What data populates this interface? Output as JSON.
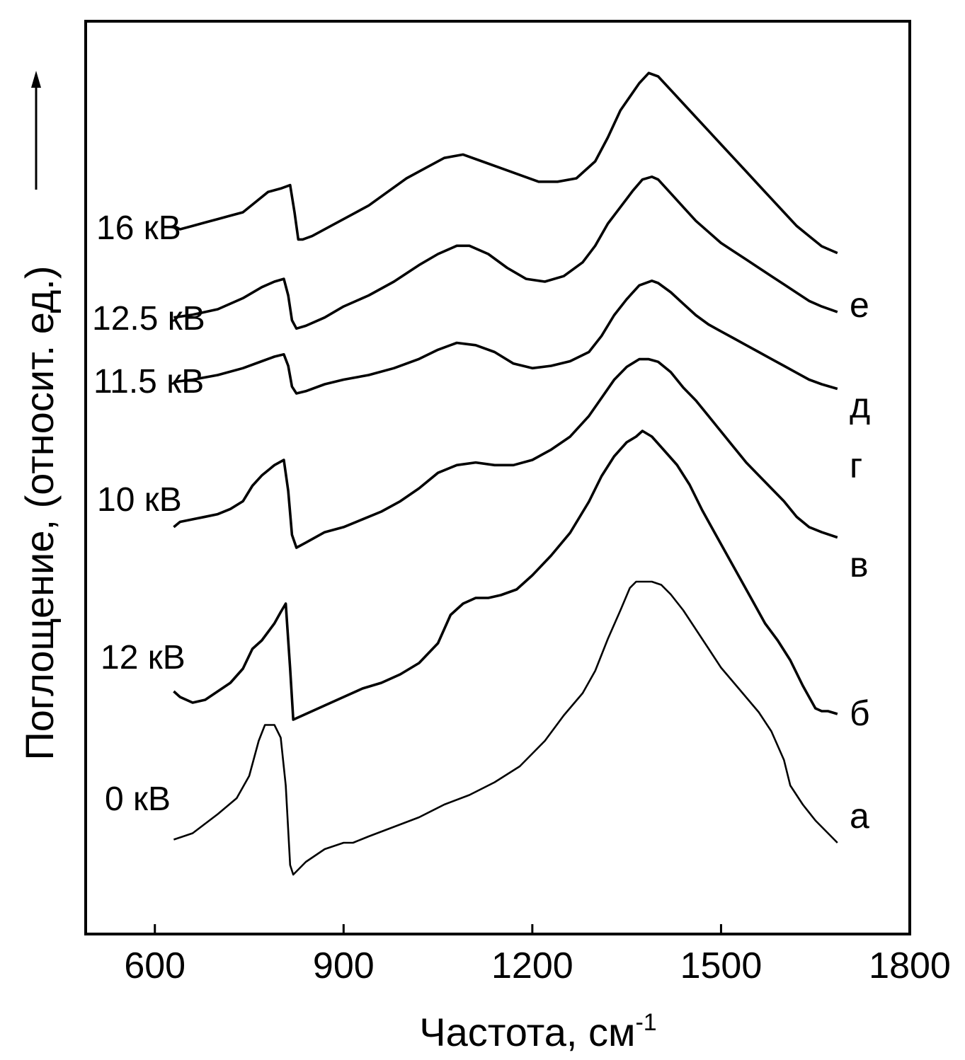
{
  "chart_data": {
    "type": "line",
    "xlabel": "Частота, см",
    "xlabel_superscript": "-1",
    "ylabel": "Поглощение, (относит. ед.)",
    "xlim": [
      490,
      1800
    ],
    "xticks": [
      600,
      900,
      1200,
      1500,
      1800
    ],
    "yticks": [],
    "grid": false,
    "ylabel_arrow": true,
    "series": [
      {
        "voltage_label": "0 кВ",
        "letter": "а",
        "x": [
          630,
          660,
          700,
          730,
          750,
          765,
          775,
          790,
          800,
          808,
          815,
          820,
          825,
          840,
          870,
          900,
          915,
          940,
          980,
          1020,
          1060,
          1100,
          1140,
          1180,
          1220,
          1250,
          1280,
          1300,
          1320,
          1340,
          1355,
          1365,
          1375,
          1390,
          1405,
          1420,
          1440,
          1460,
          1480,
          1500,
          1530,
          1560,
          1580,
          1600,
          1610,
          1630,
          1650,
          1670,
          1685
        ],
        "y": [
          0.13,
          0.15,
          0.21,
          0.26,
          0.33,
          0.44,
          0.49,
          0.49,
          0.45,
          0.3,
          0.05,
          0.02,
          0.03,
          0.06,
          0.1,
          0.12,
          0.12,
          0.14,
          0.17,
          0.2,
          0.24,
          0.27,
          0.31,
          0.36,
          0.44,
          0.52,
          0.59,
          0.66,
          0.76,
          0.85,
          0.92,
          0.94,
          0.94,
          0.94,
          0.93,
          0.9,
          0.85,
          0.79,
          0.73,
          0.67,
          0.6,
          0.53,
          0.47,
          0.38,
          0.3,
          0.24,
          0.19,
          0.15,
          0.12
        ]
      },
      {
        "voltage_label": "12 кВ",
        "letter": "б",
        "x": [
          630,
          640,
          660,
          680,
          700,
          720,
          740,
          755,
          770,
          790,
          800,
          808,
          815,
          820,
          840,
          870,
          900,
          930,
          960,
          990,
          1020,
          1050,
          1070,
          1090,
          1110,
          1130,
          1150,
          1175,
          1200,
          1230,
          1260,
          1290,
          1310,
          1330,
          1350,
          1365,
          1375,
          1390,
          1410,
          1430,
          1450,
          1470,
          1490,
          1510,
          1530,
          1550,
          1570,
          1590,
          1610,
          1630,
          1640,
          1650,
          1660,
          1670,
          1685
        ],
        "y": [
          0.12,
          0.1,
          0.08,
          0.09,
          0.12,
          0.15,
          0.2,
          0.27,
          0.3,
          0.36,
          0.4,
          0.43,
          0.2,
          0.02,
          0.04,
          0.07,
          0.1,
          0.13,
          0.15,
          0.18,
          0.22,
          0.29,
          0.39,
          0.43,
          0.45,
          0.45,
          0.46,
          0.48,
          0.53,
          0.6,
          0.68,
          0.79,
          0.88,
          0.95,
          1.0,
          1.02,
          1.04,
          1.02,
          0.97,
          0.92,
          0.85,
          0.76,
          0.68,
          0.6,
          0.52,
          0.44,
          0.36,
          0.3,
          0.23,
          0.14,
          0.1,
          0.06,
          0.05,
          0.05,
          0.04
        ]
      },
      {
        "voltage_label": "10 кВ",
        "letter": "в",
        "x": [
          630,
          640,
          660,
          680,
          700,
          720,
          740,
          755,
          770,
          790,
          805,
          812,
          818,
          825,
          840,
          870,
          900,
          930,
          960,
          990,
          1020,
          1050,
          1080,
          1110,
          1140,
          1170,
          1200,
          1230,
          1260,
          1290,
          1310,
          1330,
          1350,
          1370,
          1385,
          1400,
          1420,
          1440,
          1460,
          1480,
          1500,
          1520,
          1540,
          1560,
          1580,
          1600,
          1620,
          1640,
          1660,
          1685
        ],
        "y": [
          0.11,
          0.13,
          0.14,
          0.15,
          0.16,
          0.18,
          0.21,
          0.27,
          0.31,
          0.35,
          0.37,
          0.25,
          0.08,
          0.03,
          0.05,
          0.09,
          0.11,
          0.14,
          0.17,
          0.21,
          0.26,
          0.32,
          0.35,
          0.36,
          0.35,
          0.35,
          0.37,
          0.41,
          0.46,
          0.54,
          0.61,
          0.68,
          0.73,
          0.76,
          0.76,
          0.75,
          0.71,
          0.65,
          0.6,
          0.54,
          0.48,
          0.42,
          0.36,
          0.31,
          0.26,
          0.21,
          0.15,
          0.11,
          0.09,
          0.07
        ]
      },
      {
        "voltage_label": "11.5 кВ",
        "letter": "г",
        "x": [
          630,
          660,
          700,
          740,
          770,
          790,
          805,
          812,
          818,
          825,
          840,
          870,
          900,
          940,
          980,
          1020,
          1050,
          1080,
          1110,
          1140,
          1170,
          1200,
          1230,
          1260,
          1290,
          1310,
          1330,
          1350,
          1370,
          1390,
          1400,
          1420,
          1440,
          1460,
          1480,
          1500,
          1520,
          1540,
          1560,
          1580,
          1600,
          1620,
          1640,
          1660,
          1685
        ],
        "y": [
          0.17,
          0.18,
          0.2,
          0.23,
          0.26,
          0.28,
          0.29,
          0.24,
          0.15,
          0.12,
          0.13,
          0.16,
          0.18,
          0.2,
          0.23,
          0.27,
          0.31,
          0.34,
          0.33,
          0.3,
          0.25,
          0.23,
          0.24,
          0.26,
          0.3,
          0.37,
          0.46,
          0.53,
          0.59,
          0.61,
          0.6,
          0.56,
          0.51,
          0.46,
          0.42,
          0.39,
          0.36,
          0.33,
          0.3,
          0.27,
          0.24,
          0.21,
          0.18,
          0.16,
          0.14
        ]
      },
      {
        "voltage_label": "12.5 кВ",
        "letter": "д",
        "x": [
          630,
          660,
          700,
          740,
          770,
          790,
          805,
          812,
          818,
          825,
          840,
          870,
          900,
          940,
          980,
          1020,
          1050,
          1080,
          1100,
          1130,
          1160,
          1190,
          1220,
          1250,
          1280,
          1300,
          1320,
          1340,
          1360,
          1375,
          1390,
          1400,
          1420,
          1440,
          1460,
          1480,
          1500,
          1520,
          1540,
          1560,
          1580,
          1600,
          1620,
          1640,
          1660,
          1685
        ],
        "y": [
          0.17,
          0.18,
          0.2,
          0.24,
          0.28,
          0.3,
          0.31,
          0.25,
          0.16,
          0.13,
          0.14,
          0.17,
          0.21,
          0.25,
          0.3,
          0.36,
          0.4,
          0.43,
          0.43,
          0.4,
          0.35,
          0.31,
          0.3,
          0.32,
          0.37,
          0.43,
          0.51,
          0.57,
          0.63,
          0.67,
          0.68,
          0.67,
          0.62,
          0.57,
          0.52,
          0.48,
          0.44,
          0.41,
          0.38,
          0.35,
          0.32,
          0.29,
          0.26,
          0.23,
          0.21,
          0.19
        ]
      },
      {
        "voltage_label": "16 кВ",
        "letter": "е",
        "x": [
          630,
          640,
          660,
          680,
          700,
          720,
          740,
          760,
          780,
          800,
          815,
          822,
          828,
          835,
          850,
          880,
          910,
          940,
          970,
          1000,
          1030,
          1060,
          1090,
          1120,
          1150,
          1180,
          1210,
          1240,
          1270,
          1300,
          1320,
          1340,
          1355,
          1370,
          1385,
          1400,
          1420,
          1440,
          1460,
          1480,
          1500,
          1520,
          1540,
          1560,
          1580,
          1600,
          1620,
          1640,
          1660,
          1685
        ],
        "y": [
          0.11,
          0.1,
          0.11,
          0.12,
          0.13,
          0.14,
          0.15,
          0.18,
          0.21,
          0.22,
          0.23,
          0.15,
          0.07,
          0.07,
          0.08,
          0.11,
          0.14,
          0.17,
          0.21,
          0.25,
          0.28,
          0.31,
          0.32,
          0.3,
          0.28,
          0.26,
          0.24,
          0.24,
          0.25,
          0.3,
          0.37,
          0.45,
          0.49,
          0.53,
          0.56,
          0.55,
          0.51,
          0.47,
          0.43,
          0.39,
          0.35,
          0.31,
          0.27,
          0.23,
          0.19,
          0.15,
          0.11,
          0.08,
          0.05,
          0.03
        ]
      }
    ]
  }
}
